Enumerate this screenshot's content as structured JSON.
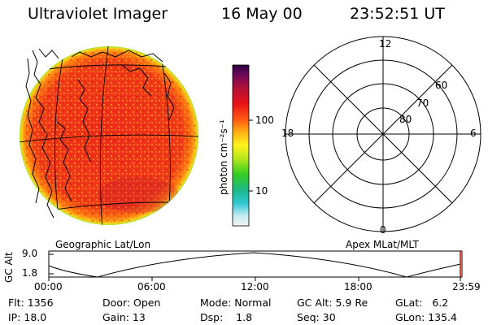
{
  "header": {
    "instrument": "Ultraviolet Imager",
    "date": "16 May 00",
    "time": "23:52:51 UT"
  },
  "colorbar": {
    "label": "photon cm⁻²s⁻¹",
    "ticks": [
      {
        "value": 100,
        "label": "100"
      },
      {
        "value": 10,
        "label": "10"
      }
    ],
    "scale": "log"
  },
  "geo_panel": {
    "label": "Geographic Lat/Lon"
  },
  "polar_panel": {
    "label": "Apex MLat/MLT",
    "mlt_labels": {
      "top": "12",
      "right": "6",
      "left": "18",
      "bottom": "0"
    },
    "lat_labels": [
      "60",
      "70",
      "80"
    ]
  },
  "altitude_plot": {
    "ylabel": "GC Alt",
    "yticks": [
      "9.0",
      "1.8"
    ],
    "xticks": [
      "00:00",
      "06:00",
      "12:00",
      "18:00",
      "23:59"
    ]
  },
  "info": {
    "flt": "Flt: 1356",
    "door": "Door: Open",
    "mode": "Mode: Normal",
    "gc_alt": "GC Alt: 5.9 Re",
    "glat": "GLat:   6.2",
    "ip": "IP: 18.0",
    "gain": "Gain: 13",
    "dsp": "Dsp:    1.8",
    "seq": "Seq: 30",
    "glon": "GLon: 135.4"
  }
}
